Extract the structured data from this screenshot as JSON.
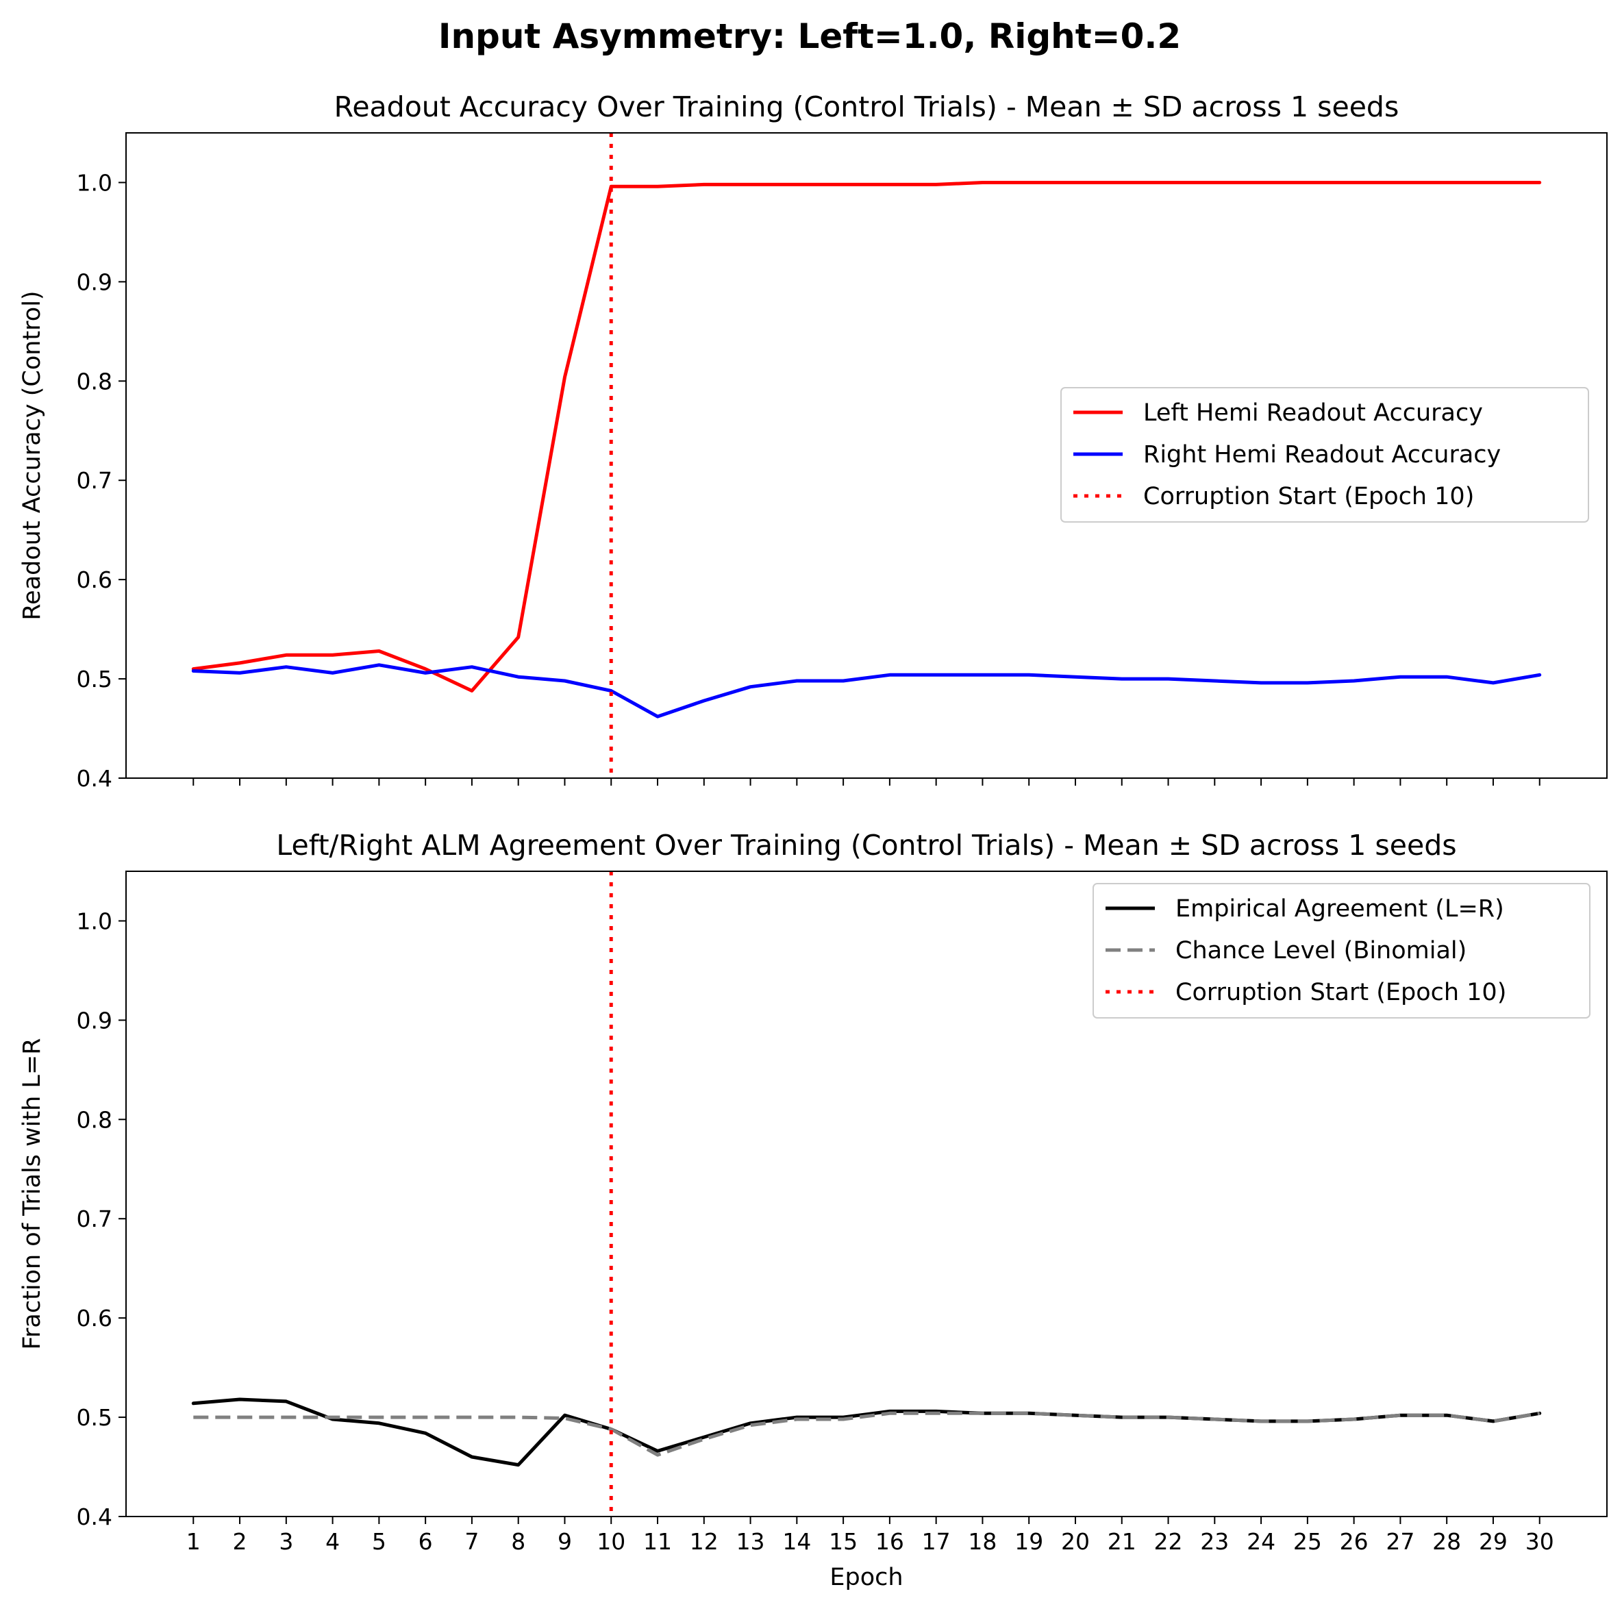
{
  "figure": {
    "suptitle": "Input Asymmetry: Left=1.0, Right=0.2"
  },
  "chart_data": [
    {
      "type": "line",
      "title": "Readout Accuracy Over Training (Control Trials) - Mean ± SD across 1 seeds",
      "xlabel": "",
      "ylabel": "Readout Accuracy (Control)",
      "xlim": [
        -0.45,
        31.45
      ],
      "ylim": [
        0.4,
        1.05
      ],
      "xticks": [
        1,
        2,
        3,
        4,
        5,
        6,
        7,
        8,
        9,
        10,
        11,
        12,
        13,
        14,
        15,
        16,
        17,
        18,
        19,
        20,
        21,
        22,
        23,
        24,
        25,
        26,
        27,
        28,
        29,
        30
      ],
      "show_xticklabels": false,
      "yticks": [
        0.4,
        0.5,
        0.6,
        0.7,
        0.8,
        0.9,
        1.0
      ],
      "ytick_labels": [
        "0.4",
        "0.5",
        "0.6",
        "0.7",
        "0.8",
        "0.9",
        "1.0"
      ],
      "grid": false,
      "legend": "center-right",
      "x": [
        1,
        2,
        3,
        4,
        5,
        6,
        7,
        8,
        9,
        10,
        11,
        12,
        13,
        14,
        15,
        16,
        17,
        18,
        19,
        20,
        21,
        22,
        23,
        24,
        25,
        26,
        27,
        28,
        29,
        30
      ],
      "series": [
        {
          "name": "Left Hemi Readout Accuracy",
          "color": "#ff0000",
          "style": "solid",
          "values": [
            0.51,
            0.516,
            0.524,
            0.524,
            0.528,
            0.51,
            0.488,
            0.542,
            0.804,
            0.996,
            0.996,
            0.998,
            0.998,
            0.998,
            0.998,
            0.998,
            0.998,
            1.0,
            1.0,
            1.0,
            1.0,
            1.0,
            1.0,
            1.0,
            1.0,
            1.0,
            1.0,
            1.0,
            1.0,
            1.0
          ]
        },
        {
          "name": "Right Hemi Readout Accuracy",
          "color": "#0000ff",
          "style": "solid",
          "values": [
            0.508,
            0.506,
            0.512,
            0.506,
            0.514,
            0.506,
            0.512,
            0.502,
            0.498,
            0.488,
            0.462,
            0.478,
            0.492,
            0.498,
            0.498,
            0.504,
            0.504,
            0.504,
            0.504,
            0.502,
            0.5,
            0.5,
            0.498,
            0.496,
            0.496,
            0.498,
            0.502,
            0.502,
            0.496,
            0.504
          ]
        }
      ],
      "vline": {
        "x": 10,
        "name": "Corruption Start (Epoch 10)",
        "color": "#ff0000",
        "style": "dotted"
      }
    },
    {
      "type": "line",
      "title": "Left/Right ALM Agreement Over Training (Control Trials) - Mean ± SD across 1 seeds",
      "xlabel": "Epoch",
      "ylabel": "Fraction of Trials with L=R",
      "xlim": [
        -0.45,
        31.45
      ],
      "ylim": [
        0.4,
        1.05
      ],
      "xticks": [
        1,
        2,
        3,
        4,
        5,
        6,
        7,
        8,
        9,
        10,
        11,
        12,
        13,
        14,
        15,
        16,
        17,
        18,
        19,
        20,
        21,
        22,
        23,
        24,
        25,
        26,
        27,
        28,
        29,
        30
      ],
      "xtick_labels": [
        "1",
        "2",
        "3",
        "4",
        "5",
        "6",
        "7",
        "8",
        "9",
        "10",
        "11",
        "12",
        "13",
        "14",
        "15",
        "16",
        "17",
        "18",
        "19",
        "20",
        "21",
        "22",
        "23",
        "24",
        "25",
        "26",
        "27",
        "28",
        "29",
        "30"
      ],
      "show_xticklabels": true,
      "yticks": [
        0.4,
        0.5,
        0.6,
        0.7,
        0.8,
        0.9,
        1.0
      ],
      "ytick_labels": [
        "0.4",
        "0.5",
        "0.6",
        "0.7",
        "0.8",
        "0.9",
        "1.0"
      ],
      "grid": false,
      "legend": "top-right",
      "x": [
        1,
        2,
        3,
        4,
        5,
        6,
        7,
        8,
        9,
        10,
        11,
        12,
        13,
        14,
        15,
        16,
        17,
        18,
        19,
        20,
        21,
        22,
        23,
        24,
        25,
        26,
        27,
        28,
        29,
        30
      ],
      "series": [
        {
          "name": "Empirical Agreement (L=R)",
          "color": "#000000",
          "style": "solid",
          "values": [
            0.514,
            0.518,
            0.516,
            0.498,
            0.494,
            0.484,
            0.46,
            0.452,
            0.502,
            0.488,
            0.466,
            0.48,
            0.494,
            0.5,
            0.5,
            0.506,
            0.506,
            0.504,
            0.504,
            0.502,
            0.5,
            0.5,
            0.498,
            0.496,
            0.496,
            0.498,
            0.502,
            0.502,
            0.496,
            0.504
          ]
        },
        {
          "name": "Chance Level (Binomial)",
          "color": "#808080",
          "style": "dashed",
          "values": [
            0.5,
            0.5,
            0.5,
            0.5,
            0.5,
            0.5,
            0.5,
            0.5,
            0.499,
            0.488,
            0.462,
            0.478,
            0.492,
            0.498,
            0.498,
            0.504,
            0.504,
            0.504,
            0.504,
            0.502,
            0.5,
            0.5,
            0.498,
            0.496,
            0.496,
            0.498,
            0.502,
            0.502,
            0.496,
            0.504
          ]
        }
      ],
      "vline": {
        "x": 10,
        "name": "Corruption Start (Epoch 10)",
        "color": "#ff0000",
        "style": "dotted"
      }
    }
  ]
}
